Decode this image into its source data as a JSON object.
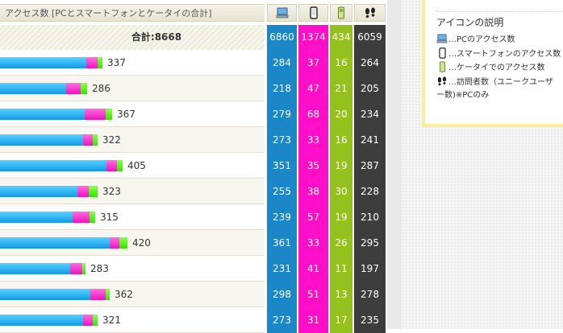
{
  "header": {
    "title": "アクセス数 [PCとスマートフォンとケータイの合計]",
    "icons": [
      "pc-icon",
      "smartphone-icon",
      "keitai-icon",
      "footprints-icon"
    ]
  },
  "total": {
    "label": "合計:8668",
    "pc": "6860",
    "sp": "1374",
    "kt": "434",
    "vs": "6059"
  },
  "rows": [
    {
      "total": "337",
      "pc": "284",
      "sp": "37",
      "kt": "16",
      "vs": "264"
    },
    {
      "total": "286",
      "pc": "218",
      "sp": "47",
      "kt": "21",
      "vs": "205"
    },
    {
      "total": "367",
      "pc": "279",
      "sp": "68",
      "kt": "20",
      "vs": "234"
    },
    {
      "total": "322",
      "pc": "273",
      "sp": "33",
      "kt": "16",
      "vs": "241"
    },
    {
      "total": "405",
      "pc": "351",
      "sp": "35",
      "kt": "19",
      "vs": "287"
    },
    {
      "total": "323",
      "pc": "255",
      "sp": "38",
      "kt": "30",
      "vs": "228"
    },
    {
      "total": "315",
      "pc": "239",
      "sp": "57",
      "kt": "19",
      "vs": "210"
    },
    {
      "total": "420",
      "pc": "361",
      "sp": "33",
      "kt": "26",
      "vs": "295"
    },
    {
      "total": "283",
      "pc": "231",
      "sp": "41",
      "kt": "11",
      "vs": "197"
    },
    {
      "total": "362",
      "pc": "298",
      "sp": "51",
      "kt": "13",
      "vs": "278"
    },
    {
      "total": "321",
      "pc": "273",
      "sp": "31",
      "kt": "17",
      "vs": "235"
    }
  ],
  "legend": {
    "title": "アイコンの説明",
    "pc": "…PCのアクセス数",
    "sp": "…スマートフォンのアクセス数",
    "kt": "…ケータイでのアクセス数",
    "vs": "…訪問者数（ユニークユーザ",
    "vs_cont": "ー数)※PCのみ"
  },
  "colors": {
    "pc": "#1b87c6",
    "sp": "#ff10c8",
    "kt": "#95c11f",
    "vs": "#3d3d3d",
    "legend_border": "#f7f19a"
  }
}
